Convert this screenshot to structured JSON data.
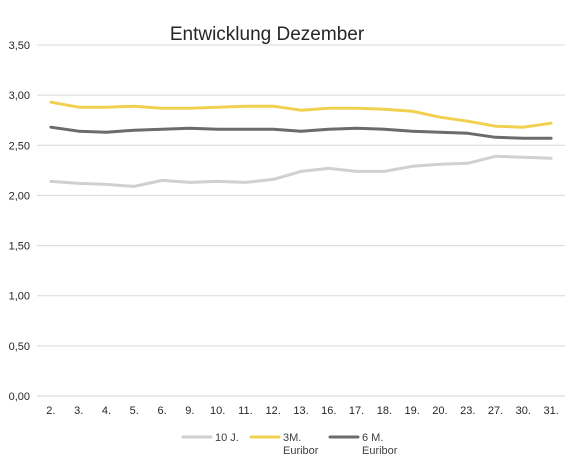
{
  "chart_data": {
    "type": "line",
    "title": "Entwicklung Dezember",
    "xlabel": "",
    "ylabel": "",
    "ylim": [
      0,
      3.5
    ],
    "yticks": [
      "0,00",
      "0,50",
      "1,00",
      "1,50",
      "2,00",
      "2,50",
      "3,00",
      "3,50"
    ],
    "grid": true,
    "legend": "bottom",
    "categories": [
      "2.",
      "3.",
      "4.",
      "5.",
      "6.",
      "9.",
      "10.",
      "11.",
      "12.",
      "13.",
      "16.",
      "17.",
      "18.",
      "19.",
      "20.",
      "23.",
      "27.",
      "30.",
      "31."
    ],
    "series": [
      {
        "name": "10 J.",
        "color": "#d0d0d0",
        "values": [
          2.14,
          2.12,
          2.11,
          2.09,
          2.15,
          2.13,
          2.14,
          2.13,
          2.16,
          2.24,
          2.27,
          2.24,
          2.24,
          2.29,
          2.31,
          2.32,
          2.39,
          2.38,
          2.37
        ]
      },
      {
        "name": "3M. Euribor",
        "name_lines": [
          "3M.",
          "Euribor"
        ],
        "color": "#f2d04f",
        "values": [
          2.93,
          2.88,
          2.88,
          2.89,
          2.87,
          2.87,
          2.88,
          2.89,
          2.89,
          2.85,
          2.87,
          2.87,
          2.86,
          2.84,
          2.78,
          2.74,
          2.69,
          2.68,
          2.72
        ]
      },
      {
        "name": "6 M. Euribor",
        "name_lines": [
          "6 M.",
          "Euribor"
        ],
        "color": "#6b6b6b",
        "values": [
          2.68,
          2.64,
          2.63,
          2.65,
          2.66,
          2.67,
          2.66,
          2.66,
          2.66,
          2.64,
          2.66,
          2.67,
          2.66,
          2.64,
          2.63,
          2.62,
          2.58,
          2.57,
          2.57
        ]
      }
    ]
  }
}
